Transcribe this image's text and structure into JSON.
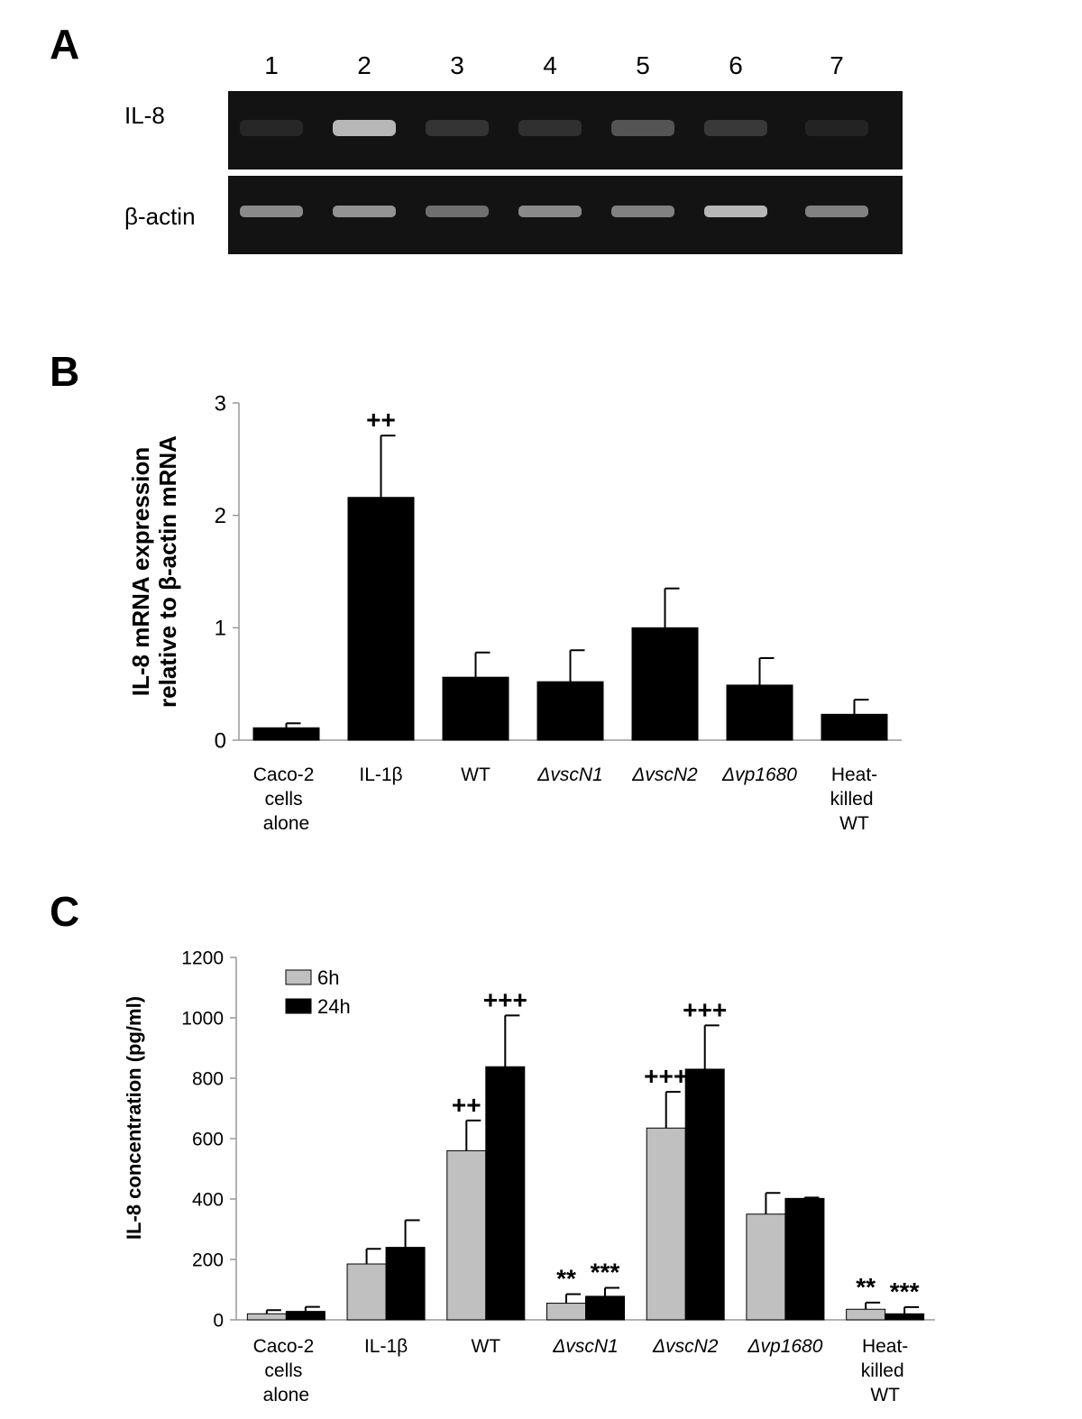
{
  "gel": {
    "label": "A",
    "lanes": [
      "1",
      "2",
      "3",
      "4",
      "5",
      "6",
      "7"
    ],
    "rows": [
      "IL-8",
      "β-actin"
    ]
  },
  "chart_data": [
    {
      "type": "bar",
      "label": "B",
      "ylabel": [
        "IL-8 mRNA expression",
        "relative to β-actin mRNA"
      ],
      "categories": [
        "Caco-2 cells alone",
        "IL-1β",
        "WT",
        "ΔvscN1",
        "ΔvscN2",
        "Δvp1680",
        "Heat-killed WT"
      ],
      "series": [
        {
          "color": "#000000",
          "values": [
            0.11,
            2.16,
            0.56,
            0.52,
            1.0,
            0.49,
            0.23
          ],
          "errors": [
            0.04,
            0.55,
            0.22,
            0.28,
            0.35,
            0.24,
            0.13
          ],
          "annotations": [
            null,
            "++",
            null,
            null,
            null,
            null,
            null
          ]
        }
      ],
      "ylim": [
        0,
        3
      ],
      "yticks": [
        0,
        1,
        2,
        3
      ]
    },
    {
      "type": "bar",
      "label": "C",
      "ylabel": [
        "IL-8 concentration (pg/ml)"
      ],
      "legend": "top-left",
      "categories": [
        "Caco-2 cells alone",
        "IL-1β",
        "WT",
        "ΔvscN1",
        "ΔvscN2",
        "Δvp1680",
        "Heat-killed WT"
      ],
      "series": [
        {
          "name": "6h",
          "color": "#c0c0c0",
          "values": [
            20,
            185,
            560,
            55,
            635,
            350,
            35
          ],
          "errors": [
            12,
            50,
            100,
            30,
            120,
            70,
            22
          ],
          "annotations": [
            null,
            null,
            "++",
            "**",
            "+++",
            null,
            "**"
          ]
        },
        {
          "name": "24h",
          "color": "#000000",
          "values": [
            28,
            240,
            838,
            78,
            830,
            402,
            20
          ],
          "errors": [
            15,
            90,
            170,
            28,
            145,
            3,
            22
          ],
          "annotations": [
            null,
            null,
            "+++",
            "***",
            "+++",
            null,
            "***"
          ]
        }
      ],
      "ylim": [
        0,
        1200
      ],
      "yticks": [
        0,
        200,
        400,
        600,
        800,
        1000,
        1200
      ]
    }
  ]
}
